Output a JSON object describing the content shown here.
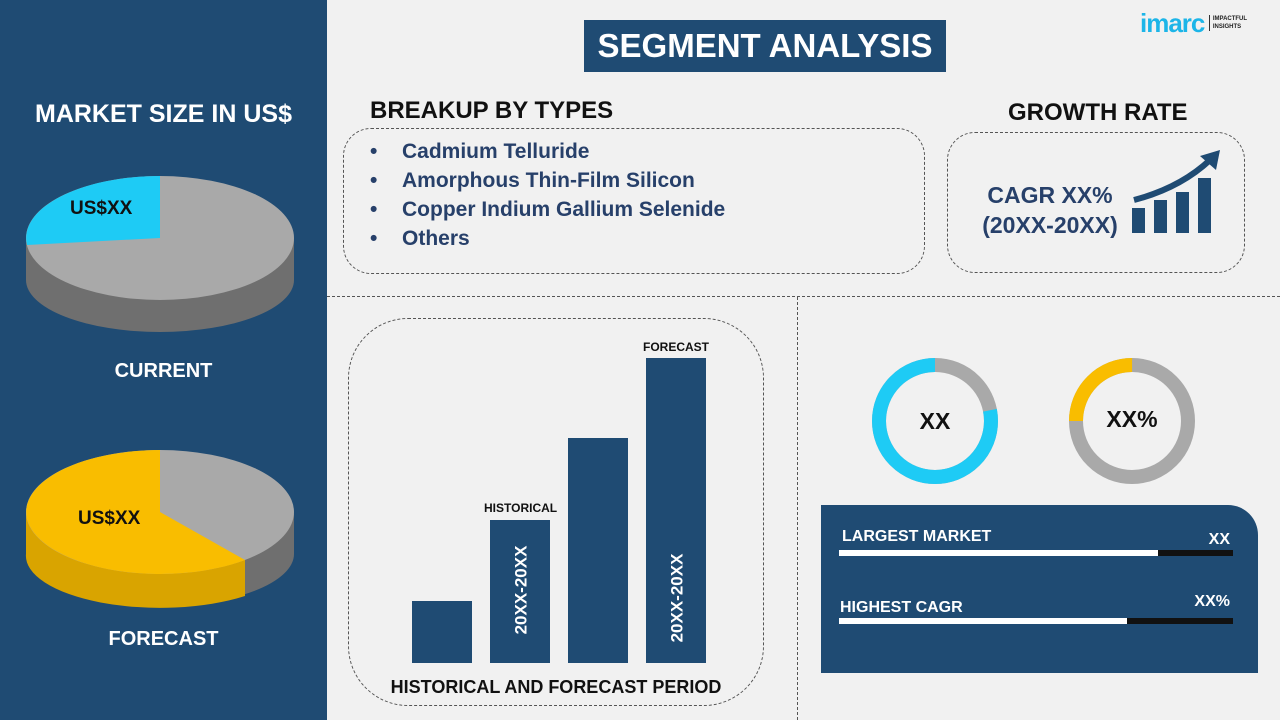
{
  "header": {
    "title": "SEGMENT ANALYSIS",
    "logo": {
      "brand": "imarc",
      "tagline": "IMPACTFUL INSIGHTS"
    }
  },
  "left": {
    "title": "MARKET SIZE IN US$",
    "current": {
      "label": "CURRENT",
      "value": "US$XX",
      "highlight_color": "#1ecbf5",
      "share": 0.2
    },
    "forecast": {
      "label": "FORECAST",
      "value": "US$XX",
      "highlight_color": "#f9bd00",
      "share": 0.6
    }
  },
  "breakup": {
    "title": "BREAKUP BY TYPES",
    "items": [
      "Cadmium Telluride",
      "Amorphous Thin-Film Silicon",
      "Copper Indium Gallium Selenide",
      "Others"
    ]
  },
  "growth": {
    "title": "GROWTH RATE",
    "cagr": "CAGR XX%",
    "period": "(20XX-20XX)"
  },
  "chart": {
    "title": "HISTORICAL AND FORECAST PERIOD",
    "historical_label": "HISTORICAL",
    "forecast_label": "FORECAST",
    "historical_period": "20XX-20XX",
    "forecast_period": "20XX-20XX"
  },
  "donuts": [
    {
      "value": "XX",
      "fill": 0.78,
      "color": "#1ecbf5"
    },
    {
      "value": "XX%",
      "fill": 0.25,
      "color": "#f9bd00"
    }
  ],
  "stats": [
    {
      "label": "LARGEST MARKET",
      "value": "XX",
      "fill": 0.81
    },
    {
      "label": "HIGHEST CAGR",
      "value": "XX%",
      "fill": 0.73
    }
  ]
}
